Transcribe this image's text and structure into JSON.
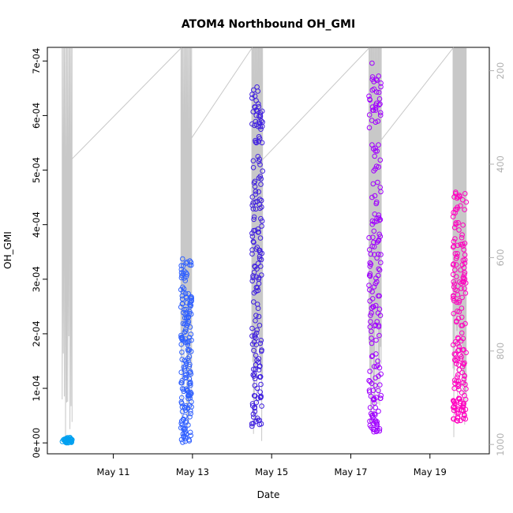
{
  "chart_data": {
    "type": "scatter",
    "title": "ATOM4 Northbound OH_GMI",
    "xlabel": "Date",
    "ylabel": "OH_GMI",
    "x_axis_type": "date",
    "xlim": [
      "2018-05-09T08:00",
      "2018-05-20T12:00"
    ],
    "ylim": [
      -2e-05,
      0.000725
    ],
    "y_ticks": [
      0,
      0.0001,
      0.0002,
      0.0003,
      0.0004,
      0.0005,
      0.0006,
      0.0007
    ],
    "y_tick_labels": [
      "0e+00",
      "1e-04",
      "2e-04",
      "3e-04",
      "4e-04",
      "5e-04",
      "6e-04",
      "7e-04"
    ],
    "x_ticks": [
      "2018-05-11",
      "2018-05-13",
      "2018-05-15",
      "2018-05-17",
      "2018-05-19"
    ],
    "x_tick_labels": [
      "May 11",
      "May 13",
      "May 15",
      "May 17",
      "May 19"
    ],
    "secondary_axis": {
      "label": "",
      "reversed": true,
      "ylim": [
        1020,
        150
      ],
      "ticks": [
        200,
        400,
        600,
        800,
        1000
      ],
      "tick_labels": [
        "200",
        "400",
        "600",
        "800",
        "1000"
      ],
      "color": "#b0b0b0"
    },
    "grid": false,
    "legend": "none",
    "marker": "open-circle",
    "color_scale": [
      "#00a0f0",
      "#3060ff",
      "#4020e0",
      "#a000ff",
      "#ff00c0"
    ],
    "flights": [
      {
        "start": "2018-05-09T17:00",
        "end": "2018-05-09T23:00",
        "oh_min": 0.0,
        "oh_max": 1e-05
      },
      {
        "start": "2018-05-12T17:00",
        "end": "2018-05-12T23:30",
        "oh_min": 0.0,
        "oh_max": 0.00034
      },
      {
        "start": "2018-05-14T12:00",
        "end": "2018-05-14T18:30",
        "oh_min": 3e-05,
        "oh_max": 0.00066
      },
      {
        "start": "2018-05-17T11:00",
        "end": "2018-05-17T18:30",
        "oh_min": 2e-05,
        "oh_max": 0.0007
      },
      {
        "start": "2018-05-19T14:00",
        "end": "2018-05-19T22:00",
        "oh_min": 4e-05,
        "oh_max": 0.00046
      }
    ]
  }
}
